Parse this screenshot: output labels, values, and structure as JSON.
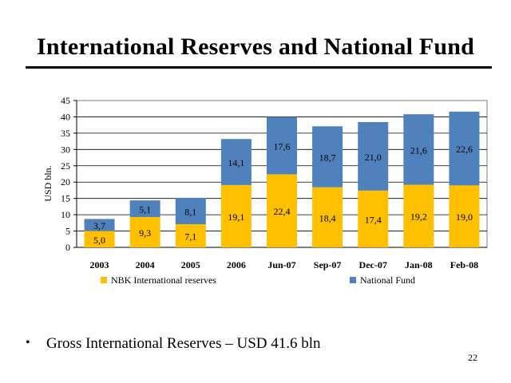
{
  "slide": {
    "title": "International Reserves and National Fund",
    "bullet": "Gross International Reserves – USD 41.6 bln",
    "page_number": "22"
  },
  "chart_data": {
    "type": "bar",
    "stacked": true,
    "title": "",
    "xlabel": "",
    "ylabel": "USD bln.",
    "ylim": [
      0,
      45
    ],
    "yticks": [
      0,
      5,
      10,
      15,
      20,
      25,
      30,
      35,
      40,
      45
    ],
    "grid": true,
    "legend_position": "bottom",
    "categories": [
      "2003",
      "2004",
      "2005",
      "2006",
      "Jun-07",
      "Sep-07",
      "Dec-07",
      "Jan-08",
      "Feb-08"
    ],
    "series": [
      {
        "name": "NBK International reserves",
        "color": "#FFC000",
        "values": [
          5.0,
          9.3,
          7.1,
          19.1,
          22.4,
          18.4,
          17.4,
          19.2,
          19.0
        ],
        "labels": [
          "5,0",
          "9,3",
          "7,1",
          "19,1",
          "22,4",
          "18,4",
          "17,4",
          "19,2",
          "19,0"
        ]
      },
      {
        "name": "National Fund",
        "color": "#4F81BD",
        "values": [
          3.7,
          5.1,
          8.1,
          14.1,
          17.6,
          18.7,
          21.0,
          21.6,
          22.6
        ],
        "labels": [
          "3,7",
          "5,1",
          "8,1",
          "14,1",
          "17,6",
          "18,7",
          "21,0",
          "21,6",
          "22,6"
        ]
      }
    ]
  }
}
